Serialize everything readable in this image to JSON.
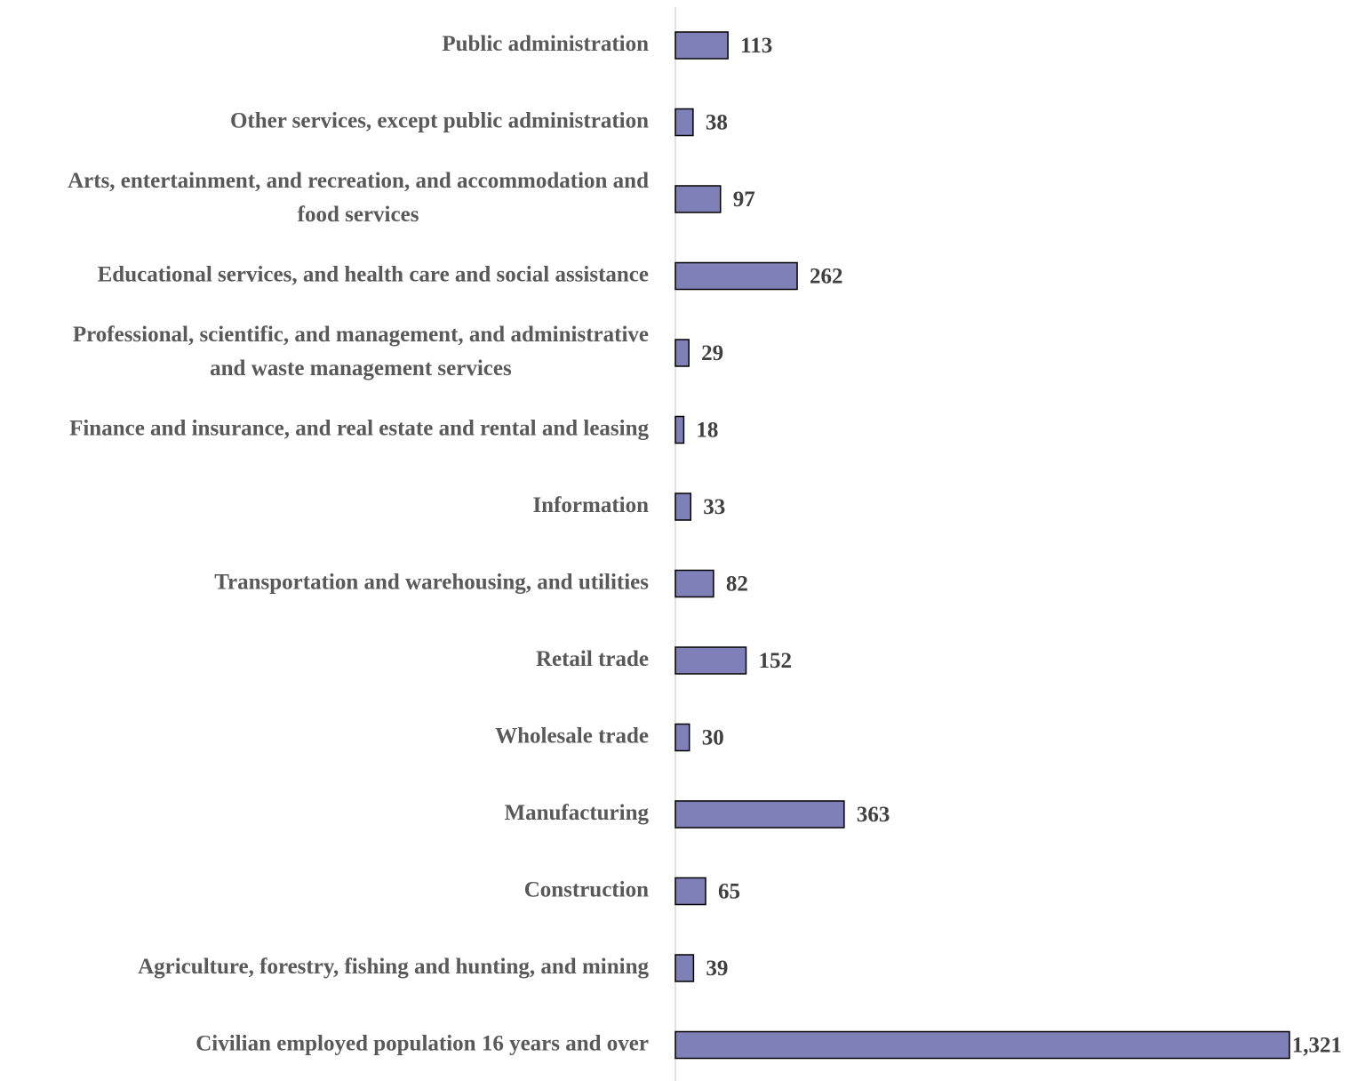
{
  "colors": {
    "bar_fill": "#8080b8",
    "bar_stroke": "#000000",
    "label_text": "#595959",
    "value_text": "#404040",
    "axis_line": "#d9d9d9"
  },
  "chart_data": {
    "type": "bar",
    "orientation": "horizontal",
    "title": "",
    "xlabel": "",
    "ylabel": "",
    "grid": false,
    "legend": "none",
    "xlim": [
      0,
      1321
    ],
    "categories": [
      [
        "Public administration"
      ],
      [
        "Other services, except public administration"
      ],
      [
        "Arts, entertainment, and recreation, and accommodation and",
        "food services"
      ],
      [
        "Educational services, and health care and social assistance"
      ],
      [
        "Professional, scientific, and management, and administrative",
        "and waste management services"
      ],
      [
        "Finance and insurance, and real estate and rental and leasing"
      ],
      [
        "Information"
      ],
      [
        "Transportation and warehousing, and utilities"
      ],
      [
        "Retail trade"
      ],
      [
        "Wholesale trade"
      ],
      [
        "Manufacturing"
      ],
      [
        "Construction"
      ],
      [
        "Agriculture, forestry, fishing and hunting, and mining"
      ],
      [
        "Civilian employed population 16 years and over"
      ]
    ],
    "values": [
      113,
      38,
      97,
      262,
      29,
      18,
      33,
      82,
      152,
      30,
      363,
      65,
      39,
      1321
    ],
    "value_labels": [
      "113",
      "38",
      "97",
      "262",
      "29",
      "18",
      "33",
      "82",
      "152",
      "30",
      "363",
      "65",
      "39",
      "1,321"
    ]
  }
}
